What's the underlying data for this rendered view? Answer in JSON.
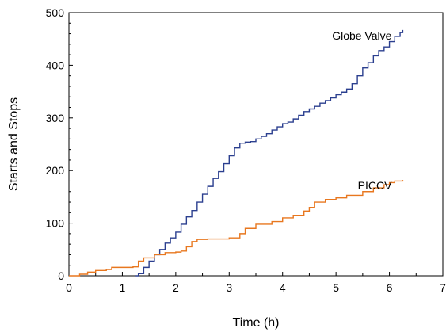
{
  "chart_data": {
    "type": "line",
    "title": "",
    "xlabel": "Time (h)",
    "ylabel": "Starts and Stops",
    "xlim": [
      0,
      7
    ],
    "ylim": [
      0,
      500
    ],
    "xticks": [
      0,
      1,
      2,
      3,
      4,
      5,
      6,
      7
    ],
    "yticks": [
      0,
      100,
      200,
      300,
      400,
      500
    ],
    "grid": false,
    "legend": "none",
    "step": true,
    "series": [
      {
        "name": "Globe Valve",
        "color": "#2b3f8f",
        "x": [
          1.25,
          1.3,
          1.4,
          1.5,
          1.6,
          1.7,
          1.8,
          1.9,
          2.0,
          2.1,
          2.2,
          2.3,
          2.4,
          2.5,
          2.6,
          2.7,
          2.8,
          2.9,
          3.0,
          3.1,
          3.2,
          3.3,
          3.4,
          3.5,
          3.6,
          3.7,
          3.8,
          3.9,
          4.0,
          4.1,
          4.2,
          4.3,
          4.4,
          4.5,
          4.6,
          4.7,
          4.8,
          4.9,
          5.0,
          5.1,
          5.2,
          5.3,
          5.4,
          5.5,
          5.6,
          5.7,
          5.8,
          5.9,
          6.0,
          6.1,
          6.2,
          6.25
        ],
        "y": [
          0,
          4,
          16,
          28,
          40,
          50,
          62,
          72,
          83,
          98,
          112,
          124,
          140,
          155,
          170,
          185,
          198,
          213,
          228,
          243,
          252,
          254,
          255,
          260,
          265,
          270,
          277,
          283,
          289,
          292,
          298,
          305,
          312,
          317,
          322,
          328,
          333,
          338,
          344,
          349,
          355,
          365,
          380,
          395,
          405,
          418,
          428,
          435,
          445,
          455,
          462,
          467
        ]
      },
      {
        "name": "PICCV",
        "color": "#e8771f",
        "x": [
          0.0,
          0.2,
          0.35,
          0.5,
          0.7,
          0.8,
          1.0,
          1.2,
          1.3,
          1.4,
          1.6,
          1.8,
          2.0,
          2.1,
          2.2,
          2.3,
          2.4,
          2.6,
          2.8,
          3.0,
          3.2,
          3.3,
          3.5,
          3.8,
          4.0,
          4.2,
          4.4,
          4.5,
          4.6,
          4.8,
          5.0,
          5.2,
          5.5,
          5.7,
          5.9,
          6.0,
          6.1,
          6.25
        ],
        "y": [
          0,
          3,
          7,
          10,
          12,
          16,
          16,
          17,
          28,
          34,
          40,
          44,
          45,
          47,
          55,
          65,
          69,
          70,
          70,
          72,
          80,
          90,
          98,
          103,
          110,
          115,
          123,
          130,
          140,
          145,
          148,
          153,
          160,
          167,
          173,
          177,
          180,
          182
        ]
      }
    ]
  }
}
